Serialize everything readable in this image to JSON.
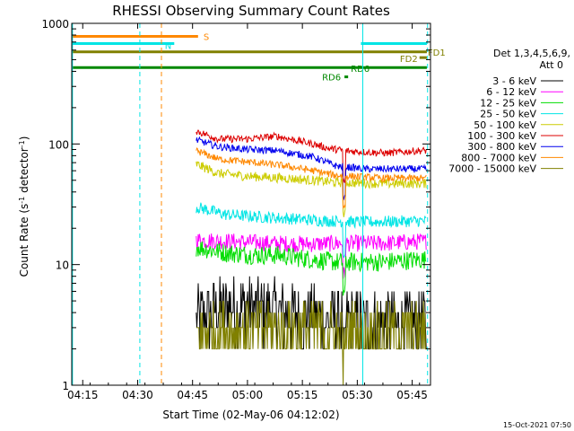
{
  "chart_data": {
    "type": "line",
    "title": "RHESSI Observing Summary Count Rates",
    "xlabel": "Start Time (02-May-06 04:12:02)",
    "ylabel_main": "Count Rate (s",
    "ylabel_sup": "-1",
    "ylabel_rest": " detector",
    "ylabel_end": ")",
    "x_units": "minutes after 04:12:02 UT",
    "xlim": [
      0,
      98
    ],
    "ylim": [
      1,
      1000
    ],
    "y_scale": "log",
    "x_ticks": [
      {
        "t": 3,
        "label": "04:15"
      },
      {
        "t": 18,
        "label": "04:30"
      },
      {
        "t": 33,
        "label": "04:45"
      },
      {
        "t": 48,
        "label": "05:00"
      },
      {
        "t": 63,
        "label": "05:15"
      },
      {
        "t": 78,
        "label": "05:30"
      },
      {
        "t": 93,
        "label": "05:45"
      }
    ],
    "y_ticks": [
      {
        "v": 1,
        "label": "1"
      },
      {
        "v": 10,
        "label": "10"
      },
      {
        "v": 100,
        "label": "100"
      },
      {
        "v": 1000,
        "label": "1000"
      }
    ],
    "legend": {
      "header1": "Det 1,3,4,5,6,9,",
      "header2": "Att 0",
      "placement": "right"
    },
    "series": [
      {
        "name": "3 - 6 keV",
        "color": "#000000",
        "base": [
          [
            34,
            3.5
          ],
          [
            40,
            4.2
          ],
          [
            48,
            4.5
          ],
          [
            56,
            4.0
          ],
          [
            66,
            3.6
          ],
          [
            72,
            3.4
          ],
          [
            82,
            3.3
          ],
          [
            95,
            3.2
          ]
        ],
        "noise": 0.28
      },
      {
        "name": "6 - 12 keV",
        "color": "#ff00ff",
        "base": [
          [
            34,
            16
          ],
          [
            45,
            15.5
          ],
          [
            55,
            15
          ],
          [
            66,
            14.8
          ],
          [
            72,
            15
          ],
          [
            85,
            15
          ],
          [
            95,
            15.5
          ]
        ],
        "noise": 0.07
      },
      {
        "name": "12 - 25 keV",
        "color": "#00dd00",
        "base": [
          [
            34,
            14
          ],
          [
            42,
            12.5
          ],
          [
            50,
            12
          ],
          [
            56,
            12
          ],
          [
            64,
            11.2
          ],
          [
            72,
            10.5
          ],
          [
            85,
            10.5
          ],
          [
            95,
            11
          ]
        ],
        "noise": 0.08
      },
      {
        "name": "25 - 50 keV",
        "color": "#00e5e5",
        "base": [
          [
            34,
            30
          ],
          [
            42,
            26
          ],
          [
            50,
            25
          ],
          [
            60,
            24
          ],
          [
            70,
            23
          ],
          [
            80,
            22.5
          ],
          [
            95,
            23
          ]
        ],
        "noise": 0.05
      },
      {
        "name": "50 - 100 keV",
        "color": "#cccc00",
        "base": [
          [
            34,
            68
          ],
          [
            40,
            57
          ],
          [
            48,
            54
          ],
          [
            58,
            52
          ],
          [
            66,
            50
          ],
          [
            72,
            48
          ],
          [
            85,
            47
          ],
          [
            95,
            47
          ]
        ],
        "noise": 0.04
      },
      {
        "name": "100 - 300 keV",
        "color": "#dd0000",
        "base": [
          [
            34,
            128
          ],
          [
            40,
            110
          ],
          [
            48,
            110
          ],
          [
            56,
            116
          ],
          [
            66,
            100
          ],
          [
            70,
            92
          ],
          [
            76,
            87
          ],
          [
            86,
            84
          ],
          [
            95,
            88
          ]
        ],
        "noise": 0.03
      },
      {
        "name": "300 - 800 keV",
        "color": "#0000ee",
        "base": [
          [
            34,
            108
          ],
          [
            40,
            95
          ],
          [
            48,
            90
          ],
          [
            56,
            88
          ],
          [
            66,
            78
          ],
          [
            72,
            66
          ],
          [
            80,
            62
          ],
          [
            95,
            62
          ]
        ],
        "noise": 0.03
      },
      {
        "name": "800 - 7000 keV",
        "color": "#ff8800",
        "base": [
          [
            34,
            88
          ],
          [
            40,
            75
          ],
          [
            48,
            71
          ],
          [
            58,
            66
          ],
          [
            66,
            60
          ],
          [
            72,
            55
          ],
          [
            85,
            52
          ],
          [
            95,
            52
          ]
        ],
        "noise": 0.03
      },
      {
        "name": "7000 - 15000 keV",
        "color": "#808000",
        "base": [
          [
            34,
            2.7
          ],
          [
            45,
            2.8
          ],
          [
            55,
            2.9
          ],
          [
            66,
            2.8
          ],
          [
            80,
            2.7
          ],
          [
            95,
            2.8
          ]
        ],
        "noise": 0.25
      }
    ],
    "flag_bars": [
      {
        "label": "S",
        "color": "#ff8800",
        "x0": 0,
        "x1": 34.5,
        "y": 780
      },
      {
        "label": "N",
        "color": "#00e5e5",
        "x0": 0,
        "x1": 28,
        "y": 680
      },
      {
        "label": "N",
        "color": "#00e5e5",
        "x0": 79,
        "x1": 97,
        "y": 680
      },
      {
        "label": "FD1",
        "color": "#808000",
        "x0": 0,
        "x1": 97,
        "y": 580
      },
      {
        "label": "FD2",
        "color": "#808000",
        "x0": 95,
        "x1": 97,
        "y": 520
      },
      {
        "label": "RD6",
        "color": "#008800",
        "x0": 0,
        "x1": 97,
        "y": 430
      },
      {
        "label": "RD6",
        "color": "#008800",
        "x0": 74.5,
        "x1": 75.5,
        "y": 360
      }
    ],
    "vlines": [
      {
        "t": 0.2,
        "color": "#00e5e5",
        "style": "solid"
      },
      {
        "t": 79.5,
        "color": "#00e5e5",
        "style": "solid"
      },
      {
        "t": 18.6,
        "color": "#00e5e5",
        "style": "dashed"
      },
      {
        "t": 97.2,
        "color": "#00e5e5",
        "style": "dashed"
      },
      {
        "t": 24.5,
        "color": "#ff8800",
        "style": "dashed"
      }
    ],
    "gap": {
      "t0": 74,
      "t1": 74.8
    },
    "footer": "15-Oct-2021 07:50"
  }
}
